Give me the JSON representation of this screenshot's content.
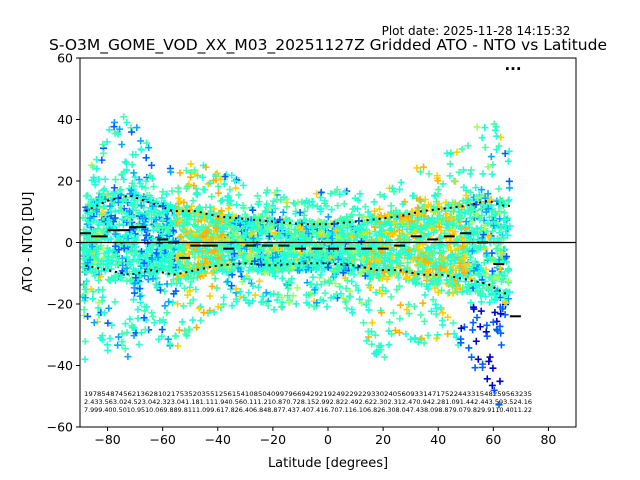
{
  "plot_date": "Plot date: 2025-11-28 14:15:32",
  "chart_data": {
    "type": "scatter",
    "title": "S-O3M_GOME_VOD_XX_M03_20251127Z Gridded ATO - NTO vs Latitude",
    "xlabel": "Latitude [degrees]",
    "ylabel": "ATO - NTO [DU]",
    "xlim": [
      -90,
      90
    ],
    "ylim": [
      -60,
      60
    ],
    "xticks": [
      -80,
      -60,
      -40,
      -20,
      0,
      20,
      40,
      60,
      80
    ],
    "yticks": [
      -60,
      -40,
      -20,
      0,
      20,
      40,
      60
    ],
    "zero_line": 0,
    "marker": "+",
    "colors": [
      "#0000cc",
      "#0060ff",
      "#00a8ff",
      "#20ffd8",
      "#40ffb0",
      "#a0ff60",
      "#ffd000",
      "#ffb000"
    ],
    "envelope": [
      {
        "lat": -88,
        "upper": 22,
        "lower": -24,
        "core_hi": 12,
        "core_lo": -10
      },
      {
        "lat": -80,
        "upper": 38,
        "lower": -36,
        "core_hi": 16,
        "core_lo": -12
      },
      {
        "lat": -72,
        "upper": 42,
        "lower": -38,
        "core_hi": 18,
        "core_lo": -14
      },
      {
        "lat": -64,
        "upper": 30,
        "lower": -30,
        "core_hi": 15,
        "core_lo": -12
      },
      {
        "lat": -56,
        "upper": 24,
        "lower": -36,
        "core_hi": 12,
        "core_lo": -14
      },
      {
        "lat": -48,
        "upper": 26,
        "lower": -28,
        "core_hi": 12,
        "core_lo": -12
      },
      {
        "lat": -40,
        "upper": 24,
        "lower": -22,
        "core_hi": 10,
        "core_lo": -10
      },
      {
        "lat": -30,
        "upper": 20,
        "lower": -20,
        "core_hi": 9,
        "core_lo": -9
      },
      {
        "lat": -20,
        "upper": 18,
        "lower": -22,
        "core_hi": 8,
        "core_lo": -10
      },
      {
        "lat": -10,
        "upper": 16,
        "lower": -20,
        "core_hi": 7,
        "core_lo": -9
      },
      {
        "lat": 0,
        "upper": 17,
        "lower": -22,
        "core_hi": 7,
        "core_lo": -9
      },
      {
        "lat": 10,
        "upper": 18,
        "lower": -24,
        "core_hi": 8,
        "core_lo": -10
      },
      {
        "lat": 18,
        "upper": 16,
        "lower": -42,
        "core_hi": 9,
        "core_lo": -12
      },
      {
        "lat": 26,
        "upper": 20,
        "lower": -30,
        "core_hi": 10,
        "core_lo": -12
      },
      {
        "lat": 34,
        "upper": 26,
        "lower": -34,
        "core_hi": 12,
        "core_lo": -14
      },
      {
        "lat": 42,
        "upper": 30,
        "lower": -30,
        "core_hi": 13,
        "core_lo": -14
      },
      {
        "lat": 50,
        "upper": 32,
        "lower": -36,
        "core_hi": 14,
        "core_lo": -16
      },
      {
        "lat": 58,
        "upper": 44,
        "lower": -48,
        "core_hi": 16,
        "core_lo": -18
      },
      {
        "lat": 64,
        "upper": 36,
        "lower": -58,
        "core_hi": 14,
        "core_lo": -22
      }
    ],
    "mean_segments": [
      {
        "x0": -90,
        "x1": -86,
        "y": 3
      },
      {
        "x0": -86,
        "x1": -80,
        "y": 2
      },
      {
        "x0": -80,
        "x1": -76,
        "y": 4
      },
      {
        "x0": -76,
        "x1": -72,
        "y": 4
      },
      {
        "x0": -72,
        "x1": -66,
        "y": 5
      },
      {
        "x0": -62,
        "x1": -58,
        "y": 1
      },
      {
        "x0": -58,
        "x1": -54,
        "y": 0
      },
      {
        "x0": -54,
        "x1": -50,
        "y": -5
      },
      {
        "x0": -50,
        "x1": -46,
        "y": -1
      },
      {
        "x0": -46,
        "x1": -40,
        "y": -1
      },
      {
        "x0": -38,
        "x1": -34,
        "y": -2
      },
      {
        "x0": -30,
        "x1": -26,
        "y": -1
      },
      {
        "x0": -24,
        "x1": -20,
        "y": -1
      },
      {
        "x0": -18,
        "x1": -14,
        "y": -1
      },
      {
        "x0": -12,
        "x1": -8,
        "y": -2
      },
      {
        "x0": -6,
        "x1": -2,
        "y": -2
      },
      {
        "x0": 0,
        "x1": 4,
        "y": -2
      },
      {
        "x0": 6,
        "x1": 10,
        "y": -2
      },
      {
        "x0": 12,
        "x1": 16,
        "y": -2
      },
      {
        "x0": 18,
        "x1": 22,
        "y": -2
      },
      {
        "x0": 24,
        "x1": 28,
        "y": -1
      },
      {
        "x0": 30,
        "x1": 34,
        "y": 2
      },
      {
        "x0": 36,
        "x1": 40,
        "y": 1
      },
      {
        "x0": 42,
        "x1": 46,
        "y": 2
      },
      {
        "x0": 48,
        "x1": 52,
        "y": 3
      },
      {
        "x0": 54,
        "x1": 58,
        "y": 0
      },
      {
        "x0": 60,
        "x1": 64,
        "y": -7
      },
      {
        "x0": 66,
        "x1": 70,
        "y": -24
      }
    ],
    "stat_rows": [
      "1978548745621362810217535203551256154108504099796694292192492292293302405609331471752244331548259563235",
      "2.433.563.024.523.042.323.041.181.111.940.560.111.210.870.728.152.992.822.492.622.302.312.470.942.281.091.442.443.593.524.16",
      "7.999.400.5010.9510.069.889.8111.099.617.826.406.848.877.437.407.416.707.116.106.826.308.047.438.098.879.079.829.9110.4011.22"
    ],
    "corner_text": "..."
  }
}
